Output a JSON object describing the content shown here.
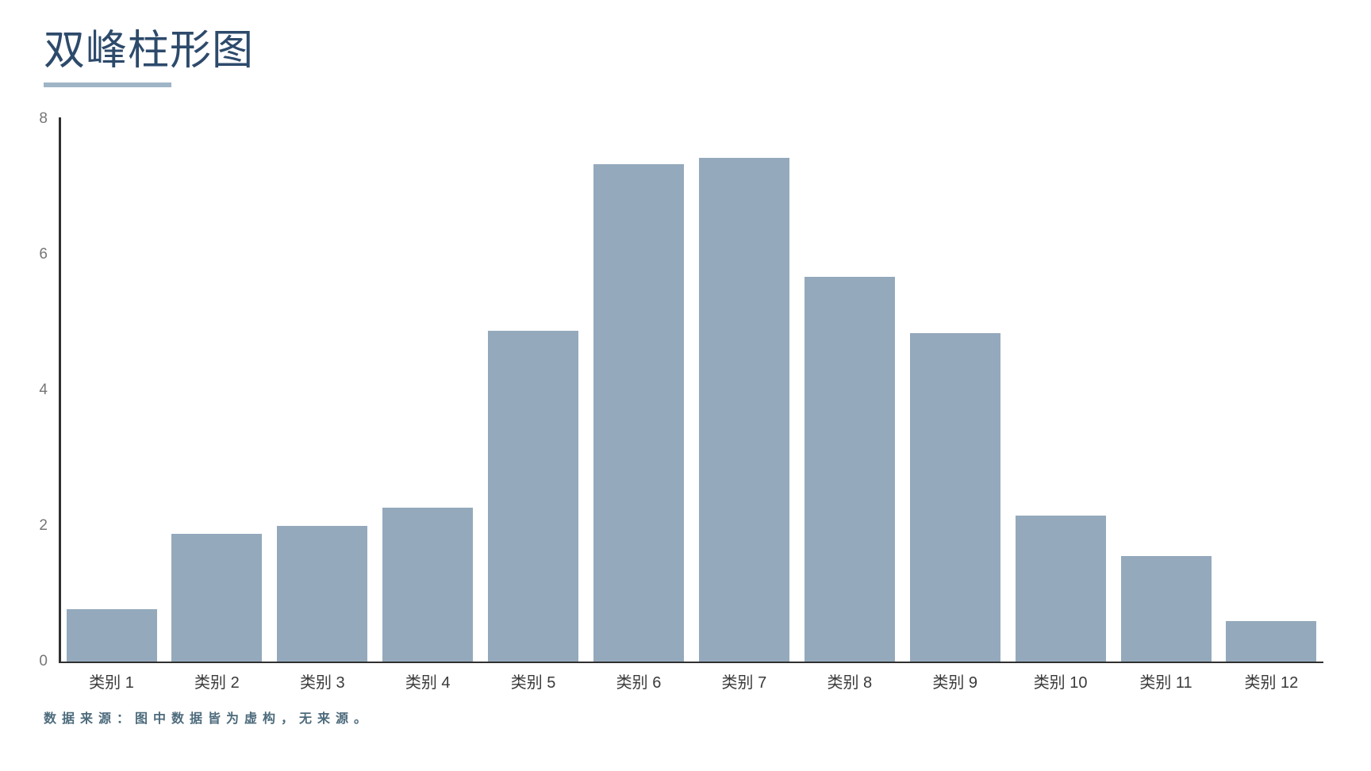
{
  "page": {
    "title": "双峰柱形图",
    "source_note": "数据来源：图中数据皆为虚构，无来源。"
  },
  "colors": {
    "background": "#ffffff",
    "title": "#2d4a6b",
    "underline": "#9fb4c6",
    "bar": "#94a9bc",
    "axis": "#303030",
    "y_tick_label": "#767676",
    "x_tick_label": "#3a3a3a",
    "note": "#4d6b7c"
  },
  "chart_data": {
    "type": "bar",
    "title": "双峰柱形图",
    "categories": [
      "类别 1",
      "类别 2",
      "类别 3",
      "类别 4",
      "类别 5",
      "类别 6",
      "类别 7",
      "类别 8",
      "类别 9",
      "类别 10",
      "类别 11",
      "类别 12"
    ],
    "values": [
      0.77,
      1.88,
      2.0,
      2.27,
      4.88,
      7.33,
      7.43,
      5.67,
      4.84,
      2.15,
      1.56,
      0.6
    ],
    "xlabel": "",
    "ylabel": "",
    "ylim": [
      0,
      8
    ],
    "yticks": [
      0,
      2,
      4,
      6,
      8
    ],
    "grid": false,
    "legend": "none",
    "annotation": "数据来源：图中数据皆为虚构，无来源。"
  }
}
